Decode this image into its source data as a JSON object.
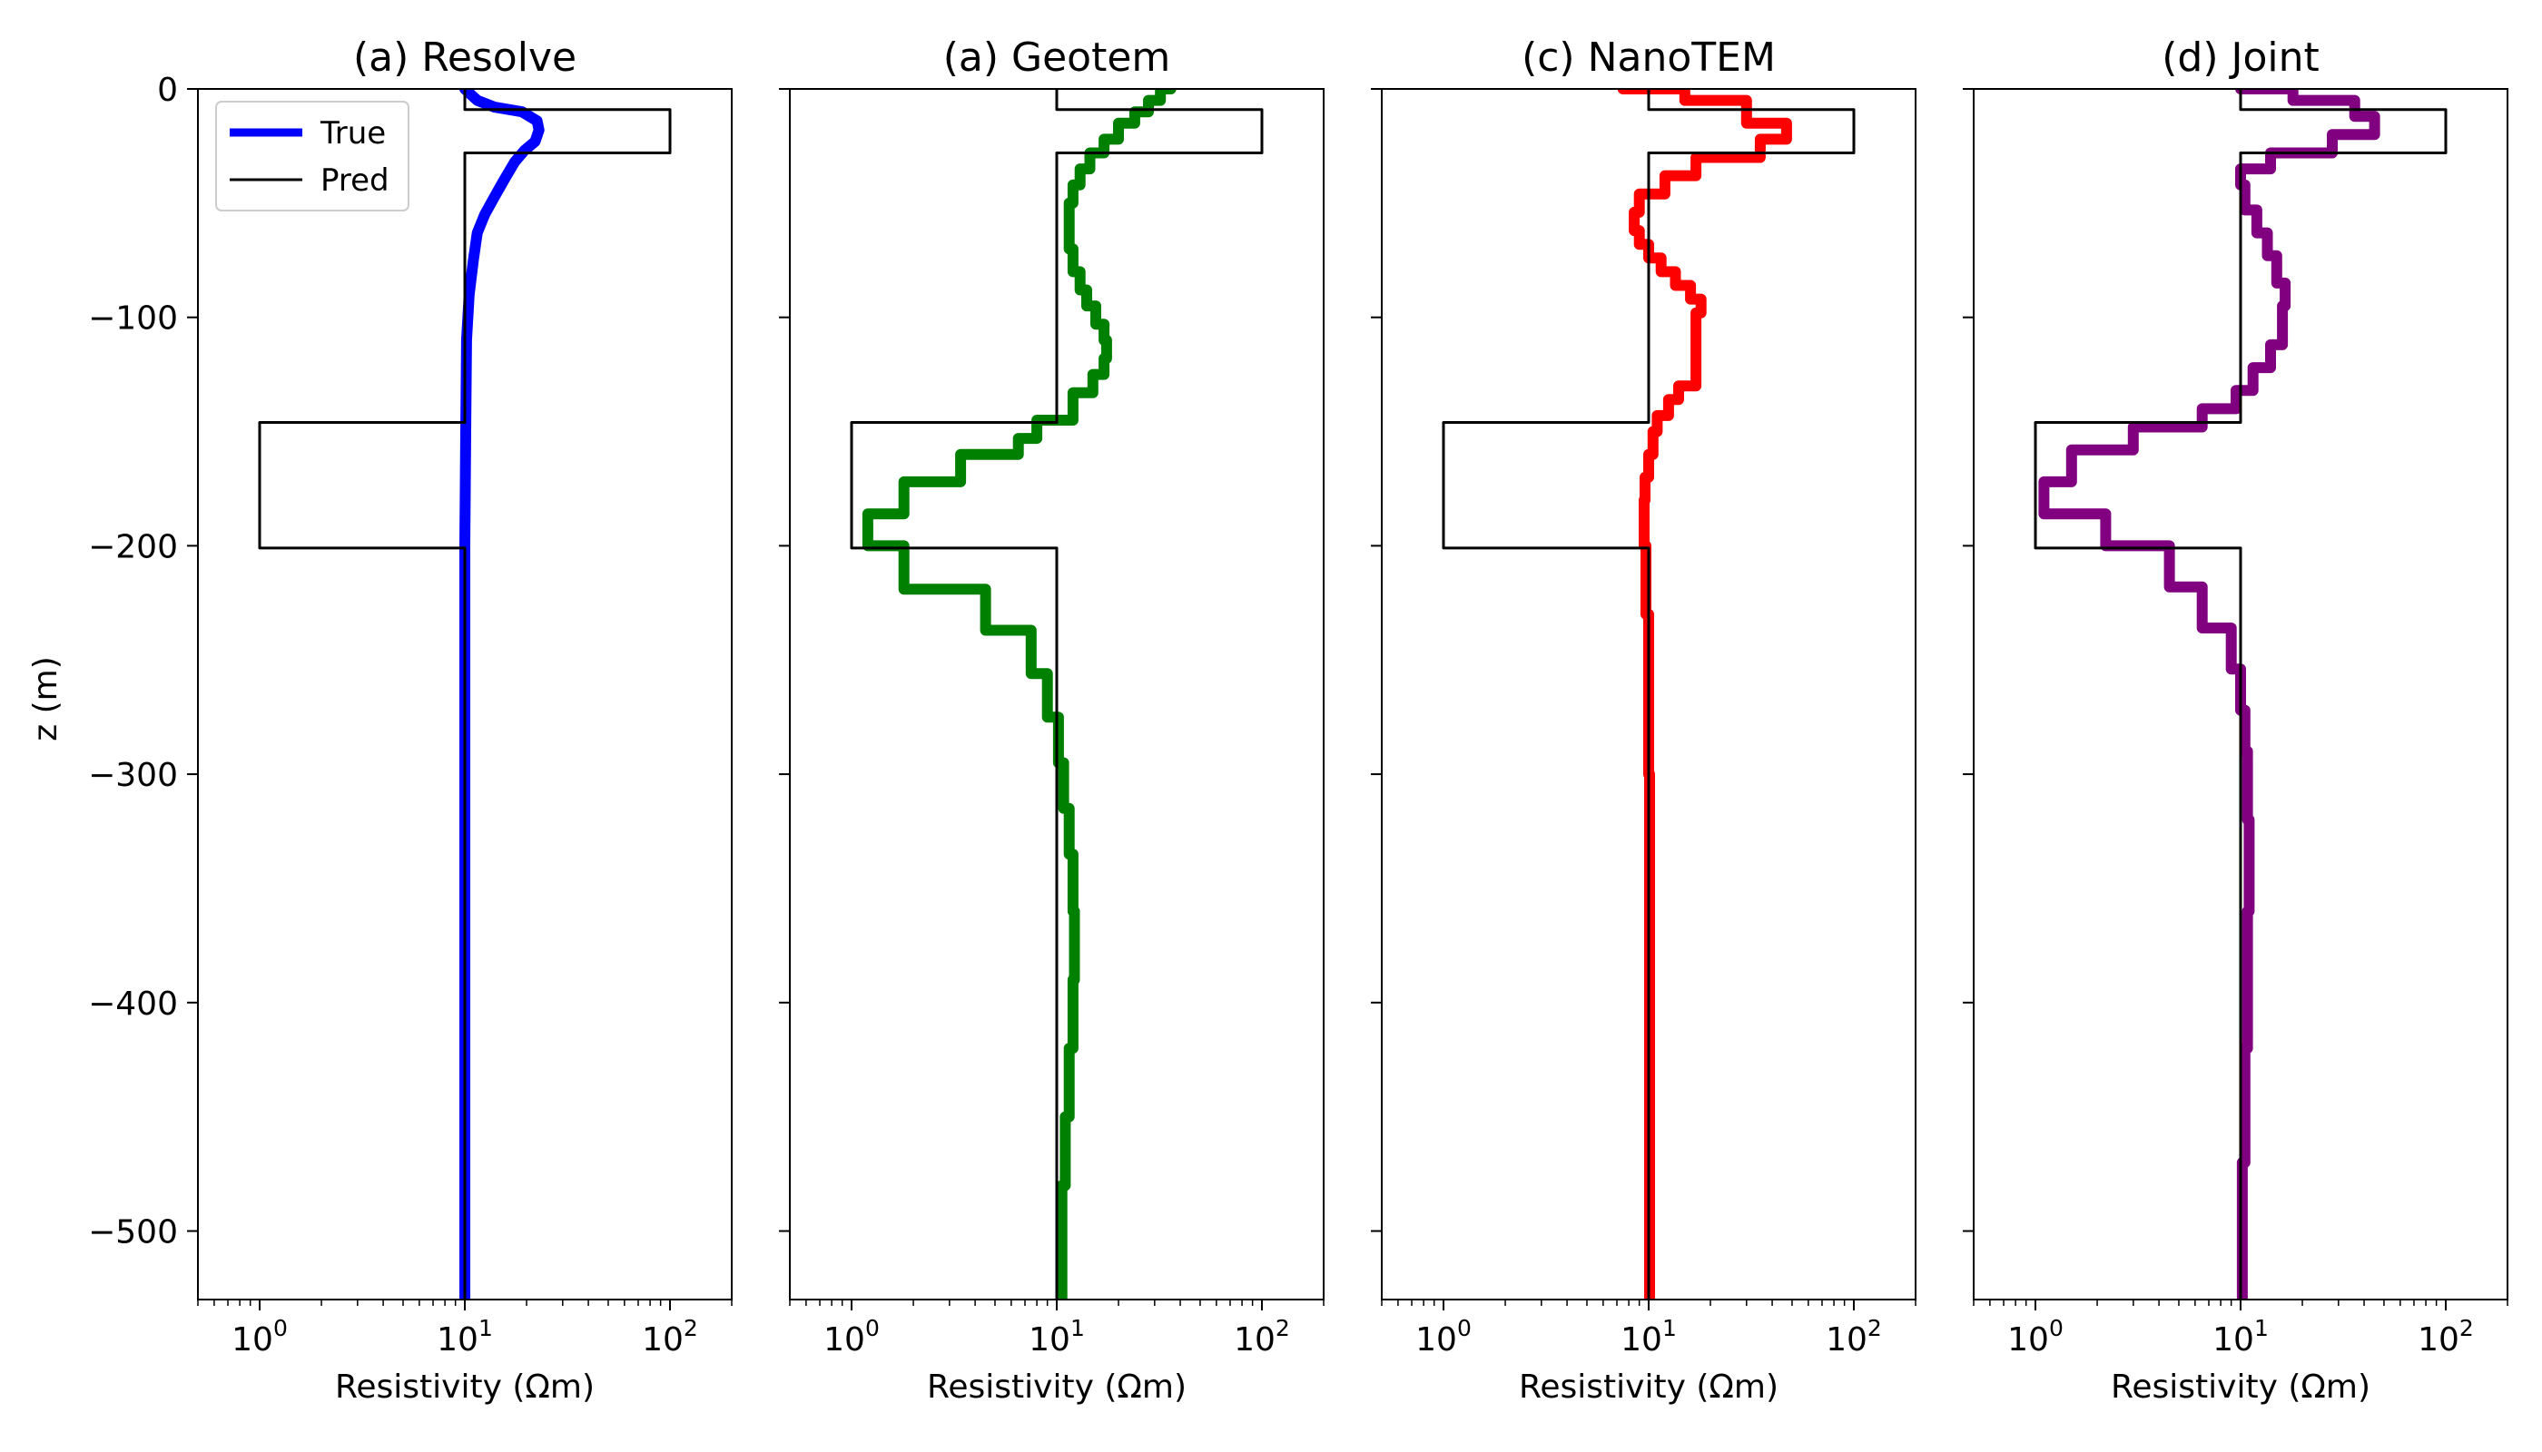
{
  "figure": {
    "ylabel": "z (m)",
    "xlabel": "Resistivity (Ωm)",
    "legend": {
      "true_label": "True",
      "pred_label": "Pred",
      "placement": "top-left, first panel"
    }
  },
  "chart_data": [
    {
      "type": "line",
      "title": "(a) Resolve",
      "xscale": "log",
      "xlim": [
        0.5,
        200
      ],
      "ylim": [
        -530,
        0
      ],
      "xticks": [
        1,
        10,
        100
      ],
      "yticks": [
        0,
        -100,
        -200,
        -300,
        -400,
        -500
      ],
      "xlabel": "Resistivity (Ωm)",
      "ylabel": "z (m)",
      "grid": false,
      "series": [
        {
          "name": "True",
          "color": "#0000ff",
          "style": "thick",
          "x": [
            10.0,
            11.5,
            14.0,
            19.0,
            22.5,
            23.0,
            22.0,
            19.5,
            17.5,
            15.5,
            14.0,
            12.5,
            11.5,
            11.0,
            10.5,
            10.2,
            10.1,
            10.0,
            10.0,
            10.0
          ],
          "z": [
            0,
            -5,
            -8,
            -10,
            -14,
            -18,
            -23,
            -27,
            -32,
            -40,
            -47,
            -55,
            -63,
            -75,
            -90,
            -110,
            -150,
            -200,
            -300,
            -530
          ]
        },
        {
          "name": "Pred",
          "color": "#000000",
          "style": "thin",
          "x": [
            10,
            10,
            100,
            100,
            10,
            10,
            1,
            1,
            10,
            10
          ],
          "z": [
            0,
            -9,
            -9,
            -28,
            -28,
            -146,
            -146,
            -201,
            -201,
            -530
          ]
        }
      ]
    },
    {
      "type": "line",
      "title": "(a) Geotem",
      "xscale": "log",
      "xlim": [
        0.5,
        200
      ],
      "ylim": [
        -530,
        0
      ],
      "xticks": [
        1,
        10,
        100
      ],
      "yticks": [
        0,
        -100,
        -200,
        -300,
        -400,
        -500
      ],
      "xlabel": "Resistivity (Ωm)",
      "grid": false,
      "series": [
        {
          "name": "True",
          "color": "#008000",
          "style": "thick",
          "x": [
            36,
            32,
            28,
            24,
            20,
            17,
            14.5,
            13,
            12,
            11.5,
            11.5,
            12,
            13,
            14,
            15.5,
            17,
            17.5,
            17,
            15,
            12,
            8,
            6.5,
            3.4,
            1.8,
            1.2,
            1.8,
            4.5,
            7.5,
            9.0,
            10.2,
            10.8,
            11.5,
            12.0,
            12.2,
            12.0,
            11.5,
            11.0,
            10.6
          ],
          "z": [
            0,
            -5,
            -10,
            -15,
            -22,
            -28,
            -35,
            -42,
            -50,
            -60,
            -70,
            -80,
            -88,
            -95,
            -103,
            -110,
            -118,
            -125,
            -133,
            -145,
            -153,
            -160,
            -172,
            -186,
            -200,
            -219,
            -237,
            -256,
            -275,
            -295,
            -315,
            -335,
            -360,
            -390,
            -420,
            -450,
            -480,
            -530
          ],
          "steps": true
        },
        {
          "name": "Pred",
          "color": "#000000",
          "style": "thin",
          "x": [
            10,
            10,
            100,
            100,
            10,
            10,
            1,
            1,
            10,
            10
          ],
          "z": [
            0,
            -9,
            -9,
            -28,
            -28,
            -146,
            -146,
            -201,
            -201,
            -530
          ]
        }
      ]
    },
    {
      "type": "line",
      "title": "(c) NanoTEM",
      "xscale": "log",
      "xlim": [
        0.5,
        200
      ],
      "ylim": [
        -530,
        0
      ],
      "xticks": [
        1,
        10,
        100
      ],
      "yticks": [
        0,
        -100,
        -200,
        -300,
        -400,
        -500
      ],
      "xlabel": "Resistivity (Ωm)",
      "grid": false,
      "series": [
        {
          "name": "True",
          "color": "#ff0000",
          "style": "thick",
          "x": [
            7.5,
            15,
            30,
            47,
            35,
            17,
            12,
            9,
            8.5,
            9,
            10,
            11.5,
            13.5,
            16,
            18,
            17,
            14,
            12.5,
            11,
            10.5,
            10,
            9.6,
            9.5,
            9.7,
            10,
            10.1,
            10.1
          ],
          "z": [
            0,
            -5,
            -15,
            -22,
            -30,
            -38,
            -46,
            -54,
            -62,
            -68,
            -74,
            -80,
            -86,
            -92,
            -98,
            -130,
            -136,
            -143,
            -150,
            -160,
            -170,
            -180,
            -200,
            -230,
            -300,
            -400,
            -530
          ],
          "steps": true
        },
        {
          "name": "Pred",
          "color": "#000000",
          "style": "thin",
          "x": [
            10,
            10,
            100,
            100,
            10,
            10,
            1,
            1,
            10,
            10
          ],
          "z": [
            0,
            -9,
            -9,
            -28,
            -28,
            -146,
            -146,
            -201,
            -201,
            -530
          ]
        }
      ]
    },
    {
      "type": "line",
      "title": "(d) Joint",
      "xscale": "log",
      "xlim": [
        0.5,
        200
      ],
      "ylim": [
        -530,
        0
      ],
      "xticks": [
        1,
        10,
        100
      ],
      "yticks": [
        0,
        -100,
        -200,
        -300,
        -400,
        -500
      ],
      "xlabel": "Resistivity (Ωm)",
      "grid": false,
      "series": [
        {
          "name": "True",
          "color": "#800080",
          "style": "thick",
          "x": [
            10,
            18,
            36,
            45,
            28,
            14,
            10,
            10.5,
            12,
            13.5,
            15,
            16.5,
            16,
            14,
            11.5,
            9.5,
            6.5,
            3,
            1.5,
            1.1,
            2.2,
            4.5,
            6.5,
            9.0,
            10.0,
            10.5,
            10.8,
            11.0,
            10.8,
            10.5,
            10.2
          ],
          "z": [
            0,
            -5,
            -12,
            -20,
            -28,
            -35,
            -42,
            -53,
            -63,
            -73,
            -85,
            -95,
            -112,
            -122,
            -132,
            -140,
            -148,
            -158,
            -172,
            -186,
            -200,
            -218,
            -236,
            -254,
            -272,
            -290,
            -320,
            -360,
            -420,
            -470,
            -530
          ],
          "steps": true
        },
        {
          "name": "Pred",
          "color": "#000000",
          "style": "thin",
          "x": [
            10,
            10,
            100,
            100,
            10,
            10,
            1,
            1,
            10,
            10
          ],
          "z": [
            0,
            -9,
            -9,
            -28,
            -28,
            -146,
            -146,
            -201,
            -201,
            -530
          ]
        }
      ]
    }
  ]
}
